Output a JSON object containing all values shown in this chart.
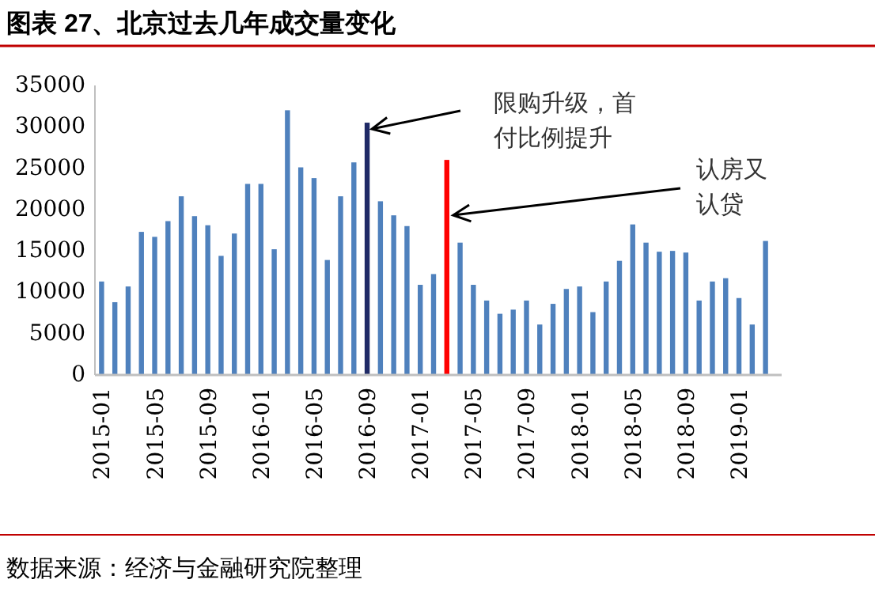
{
  "chart_data": {
    "type": "bar",
    "title": "图表 27、北京过去几年成交量变化",
    "categories": [
      "2015-01",
      null,
      null,
      null,
      "2015-05",
      null,
      null,
      null,
      "2015-09",
      null,
      null,
      null,
      "2016-01",
      null,
      null,
      null,
      "2016-05",
      null,
      null,
      null,
      "2016-09",
      null,
      null,
      null,
      "2017-01",
      null,
      null,
      null,
      "2017-05",
      null,
      null,
      null,
      "2017-09",
      null,
      null,
      null,
      "2018-01",
      null,
      null,
      null,
      "2018-05",
      null,
      null,
      null,
      "2018-09",
      null,
      null,
      null,
      "2019-01",
      null,
      null
    ],
    "values": [
      11300,
      8800,
      10700,
      17300,
      16700,
      18600,
      21600,
      19200,
      18100,
      14400,
      17100,
      23100,
      23100,
      15200,
      32000,
      25100,
      23800,
      13900,
      21600,
      25700,
      30500,
      21000,
      19300,
      18000,
      10900,
      12200,
      26000,
      16000,
      10900,
      9000,
      7400,
      7900,
      9000,
      6100,
      8600,
      10400,
      10700,
      7600,
      11300,
      13800,
      18200,
      16000,
      14900,
      15000,
      14800,
      9000,
      11300,
      11700,
      9300,
      6100,
      16200
    ],
    "colors": [
      "#4f81bd",
      "#4f81bd",
      "#4f81bd",
      "#4f81bd",
      "#4f81bd",
      "#4f81bd",
      "#4f81bd",
      "#4f81bd",
      "#4f81bd",
      "#4f81bd",
      "#4f81bd",
      "#4f81bd",
      "#4f81bd",
      "#4f81bd",
      "#4f81bd",
      "#4f81bd",
      "#4f81bd",
      "#4f81bd",
      "#4f81bd",
      "#4f81bd",
      "#1f2a66",
      "#4f81bd",
      "#4f81bd",
      "#4f81bd",
      "#4f81bd",
      "#4f81bd",
      "#ff0000",
      "#4f81bd",
      "#4f81bd",
      "#4f81bd",
      "#4f81bd",
      "#4f81bd",
      "#4f81bd",
      "#4f81bd",
      "#4f81bd",
      "#4f81bd",
      "#4f81bd",
      "#4f81bd",
      "#4f81bd",
      "#4f81bd",
      "#4f81bd",
      "#4f81bd",
      "#4f81bd",
      "#4f81bd",
      "#4f81bd",
      "#4f81bd",
      "#4f81bd",
      "#4f81bd",
      "#4f81bd",
      "#4f81bd",
      "#4f81bd"
    ],
    "ylim": [
      0,
      35000
    ],
    "yticks": [
      0,
      5000,
      10000,
      15000,
      20000,
      25000,
      30000,
      35000
    ],
    "annotations": [
      {
        "text": "限购升级，首付比例提升"
      },
      {
        "text": "认房又认贷"
      },
      "数据来源：经济与金融研究院整理"
    ]
  }
}
